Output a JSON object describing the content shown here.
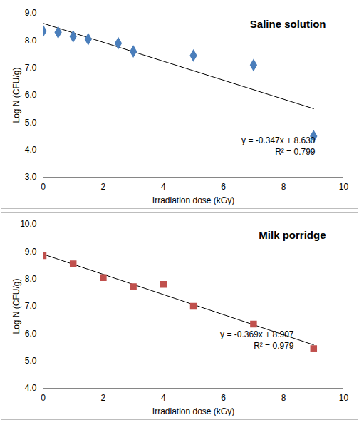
{
  "chart_data": [
    {
      "type": "scatter",
      "title": "Saline solution",
      "x_label": "Irradiation dose (kGy)",
      "y_label": "Log N (CFU/g)",
      "x": [
        0,
        0.5,
        1,
        1.5,
        2.5,
        3,
        5,
        7,
        9
      ],
      "values": [
        8.35,
        8.3,
        8.15,
        8.05,
        7.9,
        7.6,
        7.45,
        7.1,
        4.5
      ],
      "color": "#4a7ebb",
      "marker": "diamond",
      "trendline": {
        "slope": -0.347,
        "intercept": 8.63
      },
      "annotations": [
        "y = -0.347x + 8.630",
        "R² = 0.799"
      ],
      "xlim": [
        0,
        10
      ],
      "xticks": [
        0,
        2,
        4,
        6,
        8,
        10
      ],
      "ylim": [
        3,
        9
      ],
      "yticks": [
        3,
        4,
        5,
        6,
        7,
        8,
        9
      ],
      "grid": false
    },
    {
      "type": "scatter",
      "title": "Milk porridge",
      "x_label": "Irradiation dose (kGy)",
      "y_label": "Log N (CFU/g)",
      "x": [
        0,
        1,
        2,
        3,
        4,
        5,
        7,
        9
      ],
      "values": [
        8.85,
        8.55,
        8.05,
        7.72,
        7.8,
        7.0,
        6.35,
        5.45
      ],
      "color": "#c0504d",
      "marker": "square",
      "trendline": {
        "slope": -0.369,
        "intercept": 8.907
      },
      "annotations": [
        "y = -0.369x + 8.907",
        "R² = 0.979"
      ],
      "xlim": [
        0,
        10
      ],
      "xticks": [
        0,
        2,
        4,
        6,
        8,
        10
      ],
      "ylim": [
        4,
        10
      ],
      "yticks": [
        4,
        5,
        6,
        7,
        8,
        9,
        10
      ],
      "grid": false
    }
  ]
}
